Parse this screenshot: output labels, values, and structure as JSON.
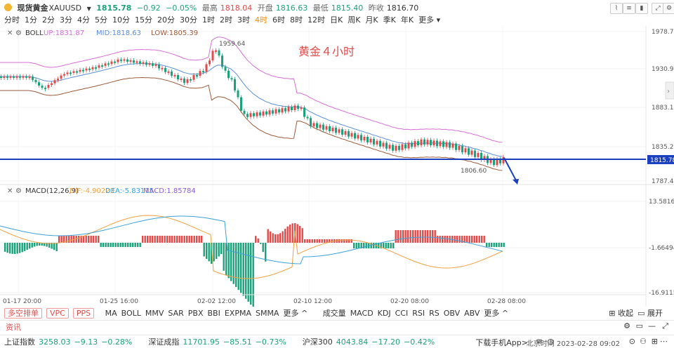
{
  "header": {
    "logo_icon": "gold-coin-icon",
    "symbol_name": "现货黄金",
    "symbol_code": "XAUUSD",
    "dropdown_icon": "chevron-down-icon",
    "price": "1815.78",
    "change": "−0.92",
    "change_pct": "−0.05%",
    "high_label": "最高",
    "high_value": "1818.04",
    "open_label": "开盘",
    "open_value": "1816.63",
    "low_label": "最低",
    "low_value": "1815.40",
    "prev_label": "昨收",
    "prev_value": "1816.70"
  },
  "timeframes": {
    "items": [
      "分时",
      "1分",
      "2分",
      "3分",
      "4分",
      "5分",
      "10分",
      "15分",
      "20分",
      "30分",
      "1时",
      "2时",
      "3时",
      "4时",
      "6时",
      "8时",
      "12时",
      "日K",
      "周K",
      "月K",
      "季K",
      "年K",
      "更多"
    ],
    "active": "4时"
  },
  "main_panel": {
    "indicator": "BOLL",
    "up_label": "UP:1831.87",
    "mid_label": "MID:1818.63",
    "low_label": "LOW:1805.39",
    "annotation": "黄金４小时",
    "high_marker": "1959.64",
    "low_marker": "1806.60",
    "price_axis": [
      "1978.77",
      "1930.95",
      "1883.12",
      "1835.29",
      "1787.47"
    ],
    "current_price_tag": "1815.78"
  },
  "macd_panel": {
    "title": "MACD(12,26,9)",
    "dif_label": "DIF:-4.90223",
    "dea_label": "DEA:-5.83115",
    "macd_label": "MACD:1.85784",
    "axis": [
      "13.58166",
      "-1.66494",
      "-16.91154"
    ]
  },
  "time_axis": [
    "01-17 20:00",
    "01-25 16:00",
    "02-02 12:00",
    "02-10 12:00",
    "02-20 08:00",
    "02-28 08:00"
  ],
  "indicator_bar": {
    "buttons": [
      "多空排单",
      "VPC",
      "PPS"
    ],
    "main_indicators": [
      "MA",
      "BOLL",
      "MMV",
      "SAR",
      "PBX",
      "BBI",
      "EXPMA",
      "SMMA",
      "更多"
    ],
    "sub_indicators": [
      "成交量",
      "MACD",
      "KDJ",
      "CCI",
      "RSI",
      "RS",
      "OBV",
      "ABV",
      "更多"
    ],
    "collapse_label": "收起",
    "expand_label": "展开"
  },
  "news_bar": {
    "label": "资讯"
  },
  "status_bar": {
    "indices": [
      {
        "name": "上证指数",
        "value": "3258.03",
        "change": "−9.13",
        "pct": "−0.28%"
      },
      {
        "name": "深证成指",
        "value": "11701.95",
        "change": "−85.51",
        "pct": "−0.73%"
      },
      {
        "name": "沪深300",
        "value": "4043.84",
        "change": "−17.20",
        "pct": "−0.42%"
      }
    ],
    "download_label": "下载手机App>",
    "clock": "北京时间 2023-02-28 09:02"
  },
  "colors": {
    "up": "#e24a4a",
    "down": "#1aa37a",
    "boll_up": "#d66fd6",
    "boll_mid": "#5a8fd6",
    "boll_low": "#9a5a3a",
    "trendline": "#1a3fbf",
    "dif": "#f0a040",
    "dea": "#3aa0d8"
  }
}
